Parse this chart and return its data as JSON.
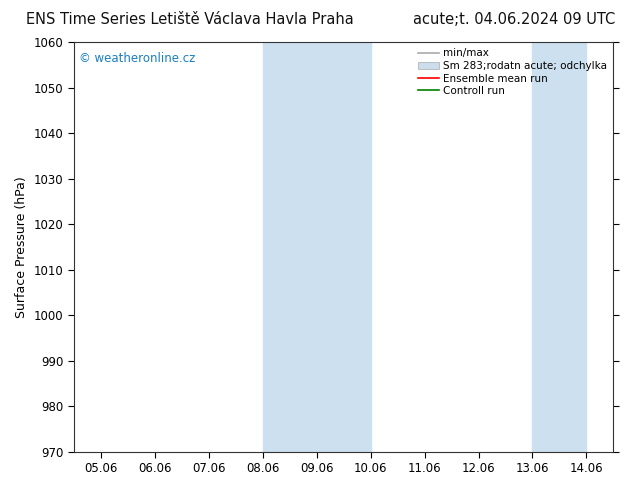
{
  "title_left": "ENS Time Series Letiště Václava Havla Praha",
  "title_right": "acute;t. 04.06.2024 09 UTC",
  "ylabel": "Surface Pressure (hPa)",
  "ylim": [
    970,
    1060
  ],
  "yticks": [
    970,
    980,
    990,
    1000,
    1010,
    1020,
    1030,
    1040,
    1050,
    1060
  ],
  "x_labels": [
    "05.06",
    "06.06",
    "07.06",
    "08.06",
    "09.06",
    "10.06",
    "11.06",
    "12.06",
    "13.06",
    "14.06"
  ],
  "x_values": [
    0,
    1,
    2,
    3,
    4,
    5,
    6,
    7,
    8,
    9
  ],
  "shaded_regions": [
    {
      "xmin": 3,
      "xmax": 5,
      "color": "#cce0f0"
    },
    {
      "xmin": 8,
      "xmax": 9,
      "color": "#cce0f0"
    }
  ],
  "legend_entries": [
    {
      "label": "min/max",
      "color": "#aaaaaa",
      "linewidth": 1.2,
      "linestyle": "-",
      "type": "line"
    },
    {
      "label": "Sm 283;rodatn acute; odchylka",
      "color": "#ccddee",
      "edgecolor": "#aaaaaa",
      "type": "patch"
    },
    {
      "label": "Ensemble mean run",
      "color": "red",
      "linewidth": 1.2,
      "linestyle": "-",
      "type": "line"
    },
    {
      "label": "Controll run",
      "color": "green",
      "linewidth": 1.2,
      "linestyle": "-",
      "type": "line"
    }
  ],
  "watermark": "© weatheronline.cz",
  "watermark_color": "#1a7fc1",
  "background_color": "#ffffff",
  "plot_bg_color": "#ffffff",
  "title_fontsize": 10.5,
  "tick_fontsize": 8.5,
  "ylabel_fontsize": 9
}
